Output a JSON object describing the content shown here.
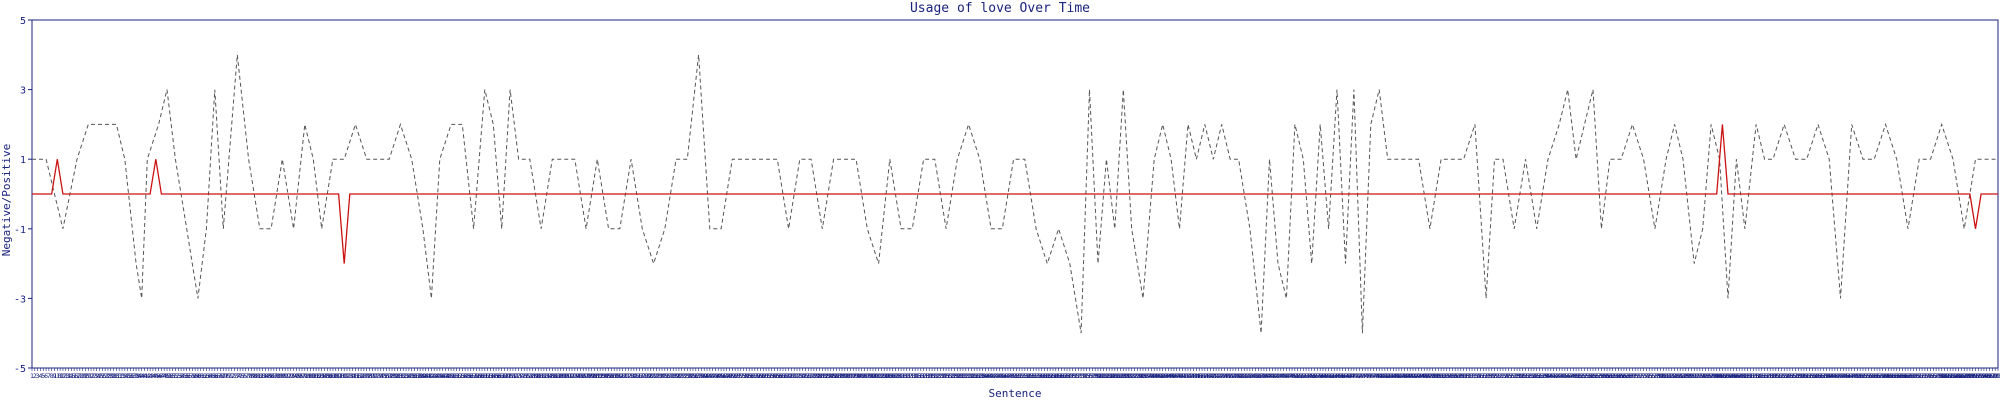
{
  "chart_data": {
    "type": "line",
    "title": "Usage of love Over Time",
    "xlabel": "Sentence",
    "ylabel": "Negative/Positive",
    "ylim": [
      -5,
      5
    ],
    "xlim": [
      1,
      700
    ],
    "yticks": [
      "5",
      "3",
      "1",
      "-1",
      "-3",
      "-5"
    ],
    "x_ticks_every_sentence": true,
    "series": [
      {
        "style": "dashed-gray",
        "color": "#555555",
        "points": [
          [
            1,
            1
          ],
          [
            6,
            1
          ],
          [
            12,
            -1
          ],
          [
            17,
            1
          ],
          [
            21,
            2
          ],
          [
            26,
            2
          ],
          [
            31,
            2
          ],
          [
            34,
            1
          ],
          [
            38,
            -2
          ],
          [
            40,
            -3
          ],
          [
            42,
            1
          ],
          [
            46,
            2
          ],
          [
            49,
            3
          ],
          [
            52,
            1
          ],
          [
            56,
            -1
          ],
          [
            60,
            -3
          ],
          [
            63,
            -1
          ],
          [
            66,
            3
          ],
          [
            69,
            -1
          ],
          [
            74,
            4
          ],
          [
            78,
            1
          ],
          [
            82,
            -1
          ],
          [
            86,
            -1
          ],
          [
            90,
            1
          ],
          [
            94,
            -1
          ],
          [
            98,
            2
          ],
          [
            101,
            1
          ],
          [
            104,
            -1
          ],
          [
            108,
            1
          ],
          [
            112,
            1
          ],
          [
            116,
            2
          ],
          [
            120,
            1
          ],
          [
            124,
            1
          ],
          [
            128,
            1
          ],
          [
            132,
            2
          ],
          [
            136,
            1
          ],
          [
            140,
            -1
          ],
          [
            143,
            -3
          ],
          [
            146,
            1
          ],
          [
            150,
            2
          ],
          [
            154,
            2
          ],
          [
            158,
            -1
          ],
          [
            162,
            3
          ],
          [
            165,
            2
          ],
          [
            168,
            -1
          ],
          [
            171,
            3
          ],
          [
            174,
            1
          ],
          [
            178,
            1
          ],
          [
            182,
            -1
          ],
          [
            186,
            1
          ],
          [
            190,
            1
          ],
          [
            194,
            1
          ],
          [
            198,
            -1
          ],
          [
            202,
            1
          ],
          [
            206,
            -1
          ],
          [
            210,
            -1
          ],
          [
            214,
            1
          ],
          [
            218,
            -1
          ],
          [
            222,
            -2
          ],
          [
            226,
            -1
          ],
          [
            230,
            1
          ],
          [
            234,
            1
          ],
          [
            238,
            4
          ],
          [
            242,
            -1
          ],
          [
            246,
            -1
          ],
          [
            250,
            1
          ],
          [
            254,
            1
          ],
          [
            258,
            1
          ],
          [
            262,
            1
          ],
          [
            266,
            1
          ],
          [
            270,
            -1
          ],
          [
            274,
            1
          ],
          [
            278,
            1
          ],
          [
            282,
            -1
          ],
          [
            286,
            1
          ],
          [
            290,
            1
          ],
          [
            294,
            1
          ],
          [
            298,
            -1
          ],
          [
            302,
            -2
          ],
          [
            306,
            1
          ],
          [
            310,
            -1
          ],
          [
            314,
            -1
          ],
          [
            318,
            1
          ],
          [
            322,
            1
          ],
          [
            326,
            -1
          ],
          [
            330,
            1
          ],
          [
            334,
            2
          ],
          [
            338,
            1
          ],
          [
            342,
            -1
          ],
          [
            346,
            -1
          ],
          [
            350,
            1
          ],
          [
            354,
            1
          ],
          [
            358,
            -1
          ],
          [
            362,
            -2
          ],
          [
            366,
            -1
          ],
          [
            370,
            -2
          ],
          [
            374,
            -4
          ],
          [
            377,
            3
          ],
          [
            380,
            -2
          ],
          [
            383,
            1
          ],
          [
            386,
            -1
          ],
          [
            389,
            3
          ],
          [
            392,
            -1
          ],
          [
            396,
            -3
          ],
          [
            400,
            1
          ],
          [
            403,
            2
          ],
          [
            406,
            1
          ],
          [
            409,
            -1
          ],
          [
            412,
            2
          ],
          [
            415,
            1
          ],
          [
            418,
            2
          ],
          [
            421,
            1
          ],
          [
            424,
            2
          ],
          [
            427,
            1
          ],
          [
            430,
            1
          ],
          [
            434,
            -1
          ],
          [
            438,
            -4
          ],
          [
            441,
            1
          ],
          [
            444,
            -2
          ],
          [
            447,
            -3
          ],
          [
            450,
            2
          ],
          [
            453,
            1
          ],
          [
            456,
            -2
          ],
          [
            459,
            2
          ],
          [
            462,
            -1
          ],
          [
            465,
            3
          ],
          [
            468,
            -2
          ],
          [
            471,
            3
          ],
          [
            474,
            -4
          ],
          [
            477,
            2
          ],
          [
            480,
            3
          ],
          [
            483,
            1
          ],
          [
            486,
            1
          ],
          [
            490,
            1
          ],
          [
            494,
            1
          ],
          [
            498,
            -1
          ],
          [
            502,
            1
          ],
          [
            506,
            1
          ],
          [
            510,
            1
          ],
          [
            514,
            2
          ],
          [
            518,
            -3
          ],
          [
            521,
            1
          ],
          [
            524,
            1
          ],
          [
            528,
            -1
          ],
          [
            532,
            1
          ],
          [
            536,
            -1
          ],
          [
            540,
            1
          ],
          [
            544,
            2
          ],
          [
            547,
            3
          ],
          [
            550,
            1
          ],
          [
            553,
            2
          ],
          [
            556,
            3
          ],
          [
            559,
            -1
          ],
          [
            562,
            1
          ],
          [
            566,
            1
          ],
          [
            570,
            2
          ],
          [
            574,
            1
          ],
          [
            578,
            -1
          ],
          [
            582,
            1
          ],
          [
            585,
            2
          ],
          [
            588,
            1
          ],
          [
            592,
            -2
          ],
          [
            595,
            -1
          ],
          [
            598,
            2
          ],
          [
            601,
            1
          ],
          [
            604,
            -3
          ],
          [
            607,
            1
          ],
          [
            610,
            -1
          ],
          [
            614,
            2
          ],
          [
            617,
            1
          ],
          [
            620,
            1
          ],
          [
            624,
            2
          ],
          [
            628,
            1
          ],
          [
            632,
            1
          ],
          [
            636,
            2
          ],
          [
            640,
            1
          ],
          [
            644,
            -3
          ],
          [
            648,
            2
          ],
          [
            652,
            1
          ],
          [
            656,
            1
          ],
          [
            660,
            2
          ],
          [
            664,
            1
          ],
          [
            668,
            -1
          ],
          [
            672,
            1
          ],
          [
            676,
            1
          ],
          [
            680,
            2
          ],
          [
            684,
            1
          ],
          [
            688,
            -1
          ],
          [
            692,
            1
          ],
          [
            696,
            1
          ],
          [
            700,
            1
          ]
        ]
      },
      {
        "style": "solid-red",
        "color": "#cc1111",
        "points": [
          [
            1,
            0
          ],
          [
            8,
            0
          ],
          [
            10,
            1
          ],
          [
            12,
            0
          ],
          [
            43,
            0
          ],
          [
            45,
            1
          ],
          [
            47,
            0
          ],
          [
            110,
            0
          ],
          [
            112,
            -2
          ],
          [
            114,
            0
          ],
          [
            600,
            0
          ],
          [
            602,
            2
          ],
          [
            604,
            0
          ],
          [
            690,
            0
          ],
          [
            692,
            -1
          ],
          [
            694,
            0
          ],
          [
            700,
            0
          ]
        ]
      }
    ],
    "colors": {
      "axis": "#1a237e",
      "dashed": "#555555",
      "trend": "#cc1111"
    }
  }
}
